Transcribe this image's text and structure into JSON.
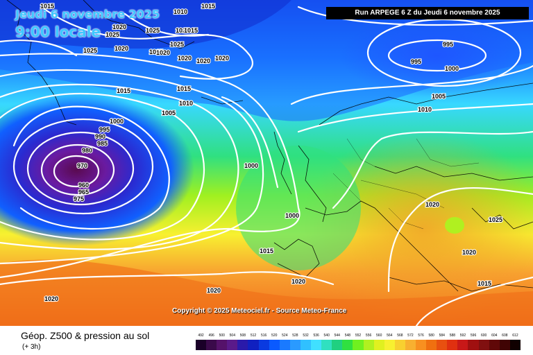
{
  "header": {
    "date": "Jeudi 6 novembre 2025",
    "time": "9:00 locale",
    "run": "Run ARPEGE 6 Z du Jeudi 6 novembre 2025"
  },
  "copyright": "Copyright © 2025 Meteociel.fr - Source Meteo-France",
  "legend": {
    "title": "Géop. Z500 & pression au sol",
    "subtitle": "(+ 3h)",
    "levels": [
      "492",
      "496",
      "500",
      "504",
      "508",
      "512",
      "516",
      "520",
      "524",
      "528",
      "532",
      "536",
      "540",
      "544",
      "548",
      "552",
      "556",
      "560",
      "564",
      "568",
      "572",
      "576",
      "580",
      "584",
      "588",
      "592",
      "596",
      "600",
      "604",
      "608",
      "612"
    ],
    "colors": [
      "#1a0028",
      "#3a0a4a",
      "#55126a",
      "#5a1a8a",
      "#2a1aaa",
      "#1020c0",
      "#0a3ae0",
      "#0a5aff",
      "#1a7aff",
      "#2a9aff",
      "#30c0ff",
      "#40e0ff",
      "#30e0c0",
      "#20d080",
      "#30e040",
      "#70f020",
      "#b0f020",
      "#e0f020",
      "#f8f030",
      "#f8d030",
      "#f8b030",
      "#f89020",
      "#f07010",
      "#e85010",
      "#e03010",
      "#c81818",
      "#a01010",
      "#801010",
      "#600808",
      "#400404",
      "#100000"
    ]
  },
  "isobar_labels": [
    {
      "text": "1015"
    },
    {
      "text": "1020"
    },
    {
      "text": "1025"
    },
    {
      "text": "1025"
    },
    {
      "text": "1025"
    },
    {
      "text": "1025"
    },
    {
      "text": "1015"
    },
    {
      "text": "1020"
    },
    {
      "text": "1025"
    },
    {
      "text": "1020"
    },
    {
      "text": "1025"
    },
    {
      "text": "1020"
    },
    {
      "text": "1020"
    },
    {
      "text": "1020"
    },
    {
      "text": "1015"
    },
    {
      "text": "1015"
    },
    {
      "text": "1010"
    },
    {
      "text": "1005"
    },
    {
      "text": "1000"
    },
    {
      "text": "995"
    },
    {
      "text": "990"
    },
    {
      "text": "985"
    },
    {
      "text": "980"
    },
    {
      "text": "970"
    },
    {
      "text": "960"
    },
    {
      "text": "965"
    },
    {
      "text": "975"
    },
    {
      "text": "1000"
    },
    {
      "text": "1000"
    },
    {
      "text": "1015"
    },
    {
      "text": "1020"
    },
    {
      "text": "1020"
    },
    {
      "text": "1020"
    },
    {
      "text": "995"
    },
    {
      "text": "995"
    },
    {
      "text": "1000"
    },
    {
      "text": "1005"
    },
    {
      "text": "1010"
    },
    {
      "text": "1020"
    },
    {
      "text": "1025"
    },
    {
      "text": "1020"
    },
    {
      "text": "1015"
    },
    {
      "text": "1010"
    },
    {
      "text": "1015"
    }
  ]
}
